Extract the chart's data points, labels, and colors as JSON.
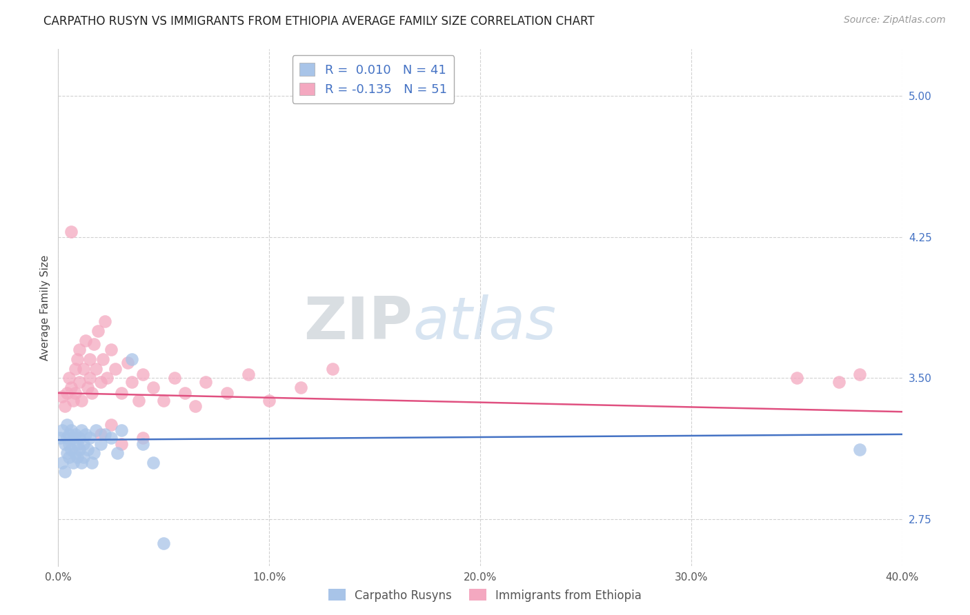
{
  "title": "CARPATHO RUSYN VS IMMIGRANTS FROM ETHIOPIA AVERAGE FAMILY SIZE CORRELATION CHART",
  "source": "Source: ZipAtlas.com",
  "ylabel": "Average Family Size",
  "xlim": [
    0.0,
    0.4
  ],
  "ylim": [
    2.5,
    5.25
  ],
  "yticks": [
    2.75,
    3.5,
    4.25,
    5.0
  ],
  "ytick_labels": [
    "2.75",
    "3.50",
    "4.25",
    "5.00"
  ],
  "xticks": [
    0.0,
    0.1,
    0.2,
    0.3,
    0.4
  ],
  "xticklabels": [
    "0.0%",
    "10.0%",
    "20.0%",
    "30.0%",
    "40.0%"
  ],
  "legend1_label": "R =  0.010   N = 41",
  "legend2_label": "R = -0.135   N = 51",
  "blue_scatter_x": [
    0.001,
    0.002,
    0.002,
    0.003,
    0.003,
    0.004,
    0.004,
    0.004,
    0.005,
    0.005,
    0.005,
    0.006,
    0.006,
    0.007,
    0.007,
    0.008,
    0.008,
    0.009,
    0.009,
    0.01,
    0.01,
    0.011,
    0.011,
    0.012,
    0.012,
    0.013,
    0.014,
    0.015,
    0.016,
    0.017,
    0.018,
    0.02,
    0.022,
    0.025,
    0.028,
    0.03,
    0.035,
    0.04,
    0.045,
    0.38,
    0.05
  ],
  "blue_scatter_y": [
    3.18,
    3.22,
    3.05,
    3.15,
    3.0,
    3.1,
    3.18,
    3.25,
    3.2,
    3.08,
    3.15,
    3.12,
    3.22,
    3.18,
    3.05,
    3.1,
    3.2,
    3.15,
    3.08,
    3.18,
    3.12,
    3.22,
    3.05,
    3.15,
    3.08,
    3.2,
    3.12,
    3.18,
    3.05,
    3.1,
    3.22,
    3.15,
    3.2,
    3.18,
    3.1,
    3.22,
    3.6,
    3.15,
    3.05,
    3.12,
    2.62
  ],
  "pink_scatter_x": [
    0.002,
    0.003,
    0.004,
    0.005,
    0.006,
    0.007,
    0.008,
    0.008,
    0.009,
    0.01,
    0.01,
    0.011,
    0.012,
    0.013,
    0.014,
    0.015,
    0.015,
    0.016,
    0.017,
    0.018,
    0.019,
    0.02,
    0.021,
    0.022,
    0.023,
    0.025,
    0.027,
    0.03,
    0.033,
    0.035,
    0.038,
    0.04,
    0.045,
    0.05,
    0.055,
    0.06,
    0.065,
    0.07,
    0.08,
    0.09,
    0.1,
    0.115,
    0.13,
    0.02,
    0.025,
    0.03,
    0.04,
    0.35,
    0.37,
    0.38,
    0.006
  ],
  "pink_scatter_y": [
    3.4,
    3.35,
    3.42,
    3.5,
    3.45,
    3.38,
    3.55,
    3.42,
    3.6,
    3.48,
    3.65,
    3.38,
    3.55,
    3.7,
    3.45,
    3.6,
    3.5,
    3.42,
    3.68,
    3.55,
    3.75,
    3.48,
    3.6,
    3.8,
    3.5,
    3.65,
    3.55,
    3.42,
    3.58,
    3.48,
    3.38,
    3.52,
    3.45,
    3.38,
    3.5,
    3.42,
    3.35,
    3.48,
    3.42,
    3.52,
    3.38,
    3.45,
    3.55,
    3.2,
    3.25,
    3.15,
    3.18,
    3.5,
    3.48,
    3.52,
    4.28
  ],
  "blue_line_y0": 3.17,
  "blue_line_y1": 3.2,
  "pink_line_y0": 3.42,
  "pink_line_y1": 3.32,
  "blue_line_color": "#4472c4",
  "pink_line_color": "#e05080",
  "scatter_blue_color": "#a8c4e8",
  "scatter_pink_color": "#f4a8c0",
  "title_fontsize": 12,
  "axis_color": "#4472c4",
  "grid_color": "#cccccc",
  "background_color": "#ffffff",
  "legend_box_color": "#f0f0f0"
}
